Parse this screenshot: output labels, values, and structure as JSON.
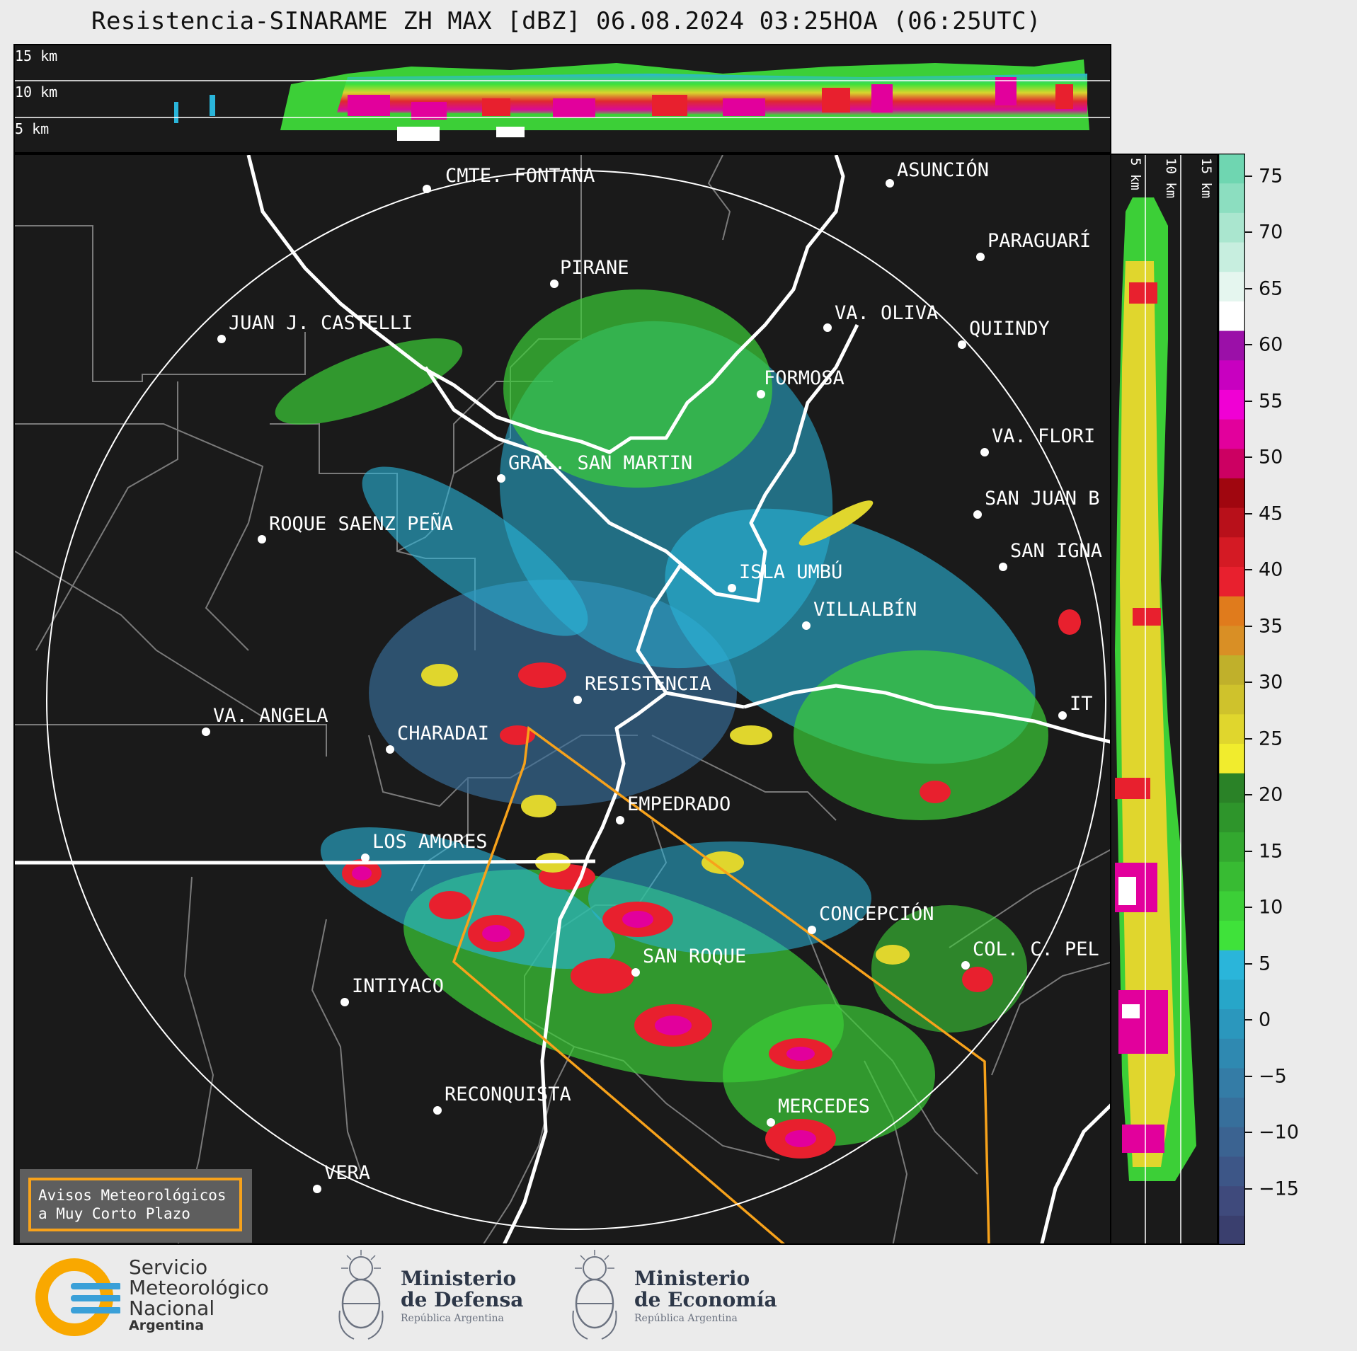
{
  "title": "Resistencia-SINARAME ZH MAX [dBZ] 06.08.2024 03:25HOA (06:25UTC)",
  "top_panel": {
    "height_labels": [
      "15 km",
      "10 km",
      "5 km"
    ]
  },
  "side_panel": {
    "height_labels": [
      "5 km",
      "10 km",
      "15 km"
    ]
  },
  "places": [
    {
      "name": "CMTE. FONTANA"
    },
    {
      "name": "ASUNCIÓN"
    },
    {
      "name": "PARAGUARÍ"
    },
    {
      "name": "PIRANE"
    },
    {
      "name": "JUAN J. CASTELLI"
    },
    {
      "name": "VA. OLIVA"
    },
    {
      "name": "QUIINDY"
    },
    {
      "name": "FORMOSA"
    },
    {
      "name": "VA. FLORI"
    },
    {
      "name": "GRAL. SAN MARTIN"
    },
    {
      "name": "SAN JUAN B"
    },
    {
      "name": "ROQUE SAENZ PEÑA"
    },
    {
      "name": "SAN IGNA"
    },
    {
      "name": "ISLA UMBÚ"
    },
    {
      "name": "VILLALBÍN"
    },
    {
      "name": "RESISTENCIA"
    },
    {
      "name": "VA. ANGELA"
    },
    {
      "name": "CHARADAI"
    },
    {
      "name": "IT"
    },
    {
      "name": "EMPEDRADO"
    },
    {
      "name": "LOS AMORES"
    },
    {
      "name": "CONCEPCIÓN"
    },
    {
      "name": "COL. C. PEL"
    },
    {
      "name": "SAN ROQUE"
    },
    {
      "name": "INTIYACO"
    },
    {
      "name": "MERCEDES"
    },
    {
      "name": "RECONQUISTA"
    },
    {
      "name": "VERA"
    }
  ],
  "colorbar": {
    "unit": "dBZ",
    "ticks": [
      "75",
      "70",
      "65",
      "60",
      "55",
      "50",
      "45",
      "40",
      "35",
      "30",
      "25",
      "20",
      "15",
      "10",
      "5",
      "0",
      "−5",
      "−10",
      "−15"
    ],
    "colors_bottom_to_top": [
      "#3a3f6e",
      "#3f4a7c",
      "#3d5687",
      "#3b6391",
      "#376f9b",
      "#347ca6",
      "#2f89b1",
      "#2b97bd",
      "#27a6c9",
      "#2ab5da",
      "#3fe23a",
      "#3ccf37",
      "#38bb33",
      "#33a82f",
      "#2e952b",
      "#2a8227",
      "#f1ec2d",
      "#e0d62d",
      "#cfc22c",
      "#c0b02b",
      "#d98f25",
      "#e07b1c",
      "#e8202e",
      "#d41a24",
      "#b8101a",
      "#a0060f",
      "#cc0062",
      "#e2009c",
      "#f000d4",
      "#c800c0",
      "#9b10a8",
      "#ffffff",
      "#e5f6ef",
      "#c7eedf",
      "#aae6cf",
      "#8cdec0",
      "#6fd6b1"
    ],
    "range": [
      -20,
      77
    ]
  },
  "warning_box": {
    "line1": "Avisos Meteorológicos",
    "line2": "a Muy Corto Plazo"
  },
  "logos": {
    "smn": {
      "line1": "Servicio",
      "line2": "Meteorológico",
      "line3": "Nacional",
      "line4": "Argentina"
    },
    "defensa": {
      "line1": "Ministerio",
      "line2": "de Defensa",
      "line3": "República Argentina"
    },
    "economia": {
      "line1": "Ministerio",
      "line2": "de Economía",
      "line3": "República Argentina"
    }
  }
}
